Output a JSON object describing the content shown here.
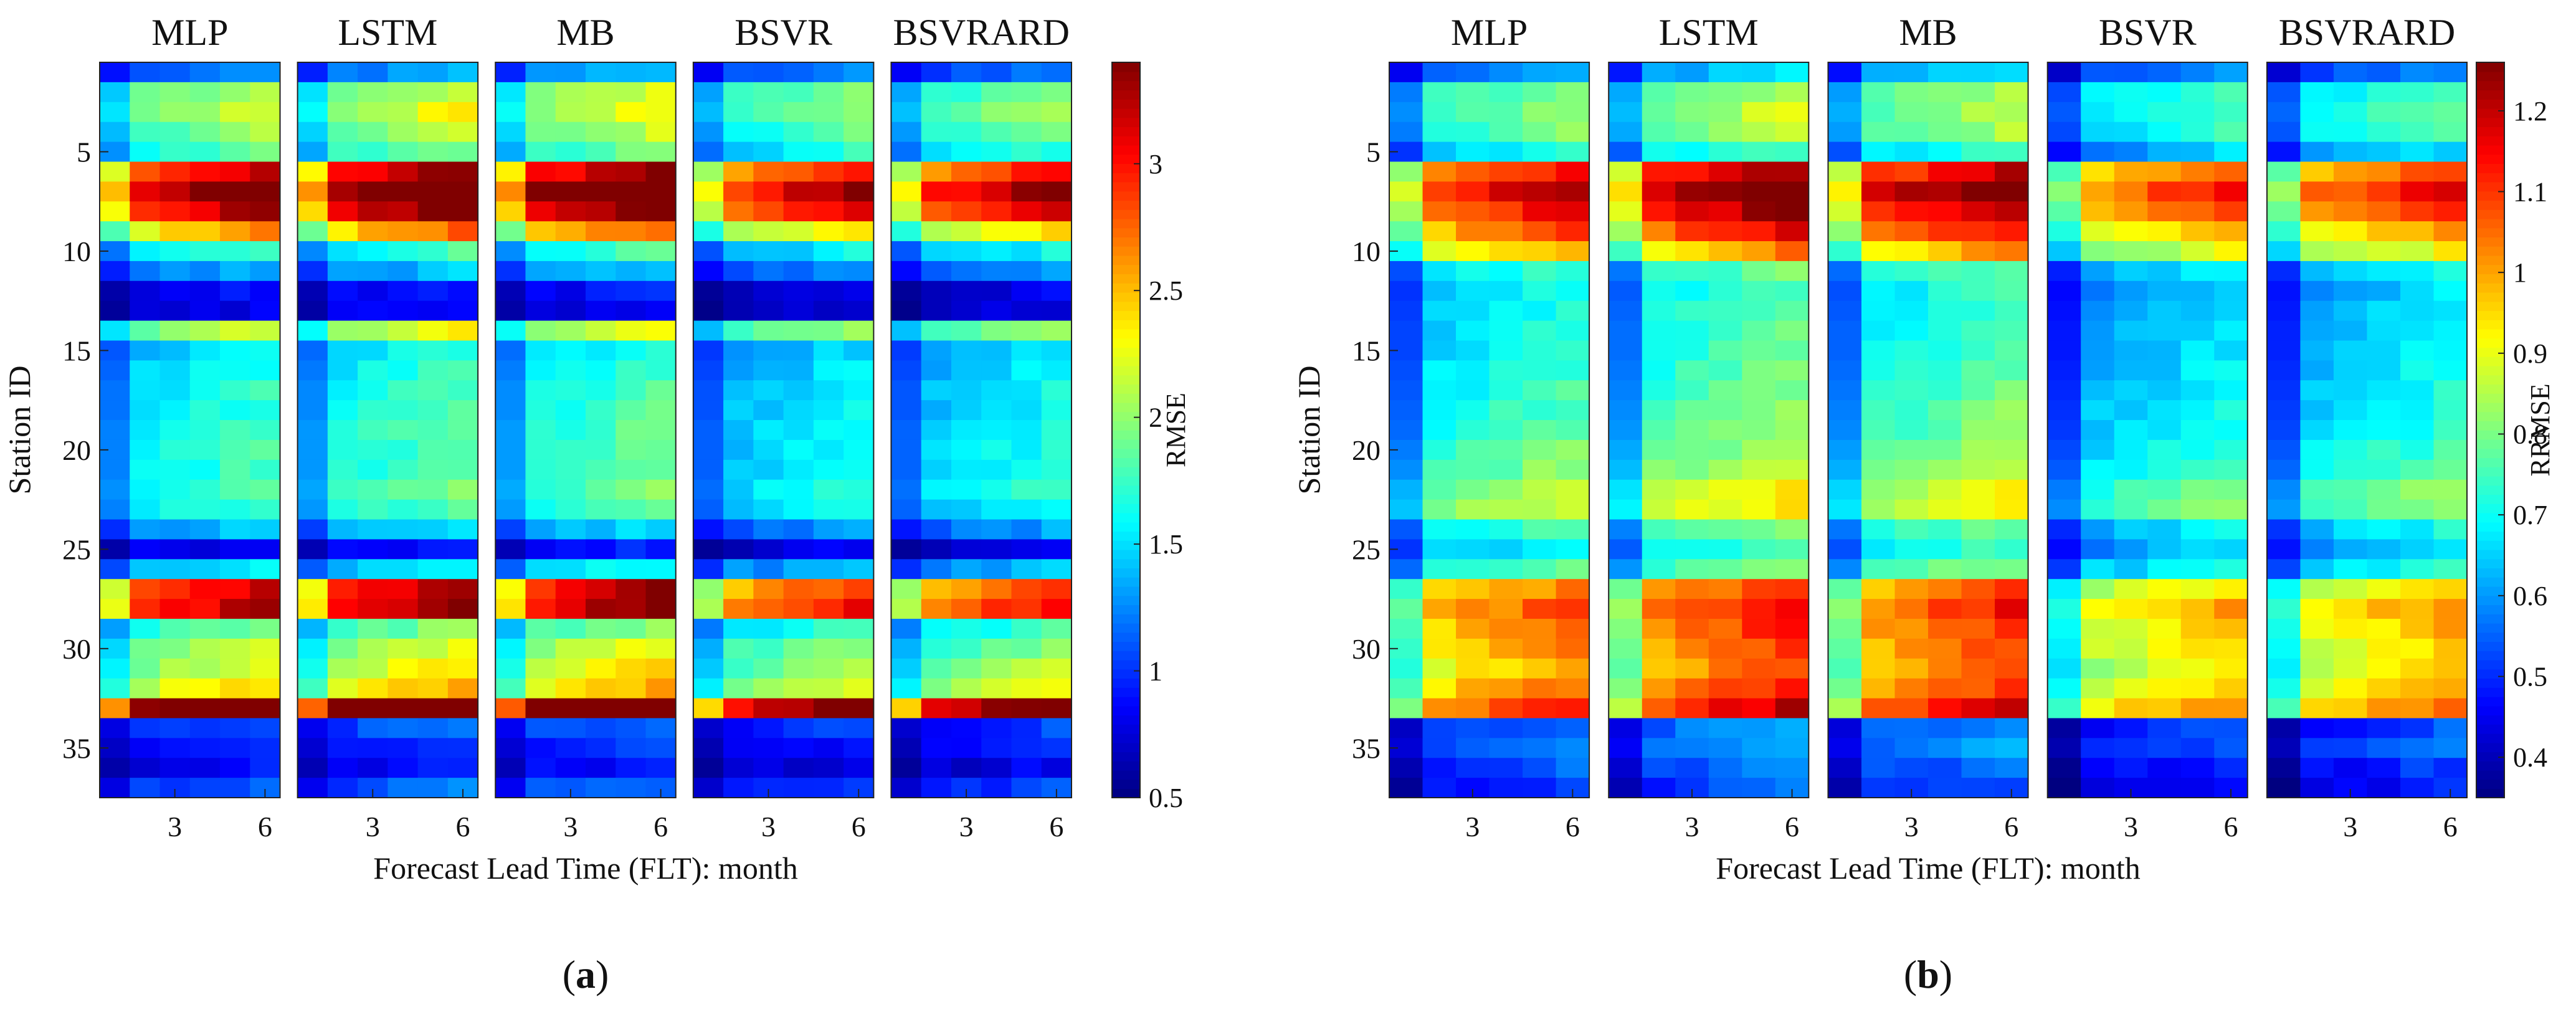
{
  "chart_data": [
    {
      "type": "heatmap",
      "panel_label": "a",
      "colorbar_title": "RMSE",
      "ylabel": "Station ID",
      "xlabel": "Forecast Lead Time (FLT): month",
      "models": [
        "MLP",
        "LSTM",
        "MB",
        "BSVR",
        "BSVRARD"
      ],
      "x_ticks": [
        3,
        6
      ],
      "lead_times": [
        1,
        2,
        3,
        4,
        5,
        6
      ],
      "y_ticks": [
        5,
        10,
        15,
        20,
        25,
        30,
        35
      ],
      "n_stations": 37,
      "colorbar_range": [
        0.5,
        3.4
      ],
      "colorbar_ticks": [
        0.5,
        1,
        1.5,
        2,
        2.5,
        3
      ],
      "station_profile": [
        1.1,
        1.75,
        1.85,
        1.7,
        1.55,
        2.7,
        3.05,
        2.8,
        2.2,
        1.45,
        1.15,
        0.75,
        0.7,
        1.85,
        1.35,
        1.4,
        1.45,
        1.45,
        1.5,
        1.5,
        1.5,
        1.55,
        1.5,
        1.2,
        0.75,
        1.3,
        2.65,
        2.75,
        1.6,
        1.8,
        1.9,
        2.05,
        3.2,
        0.95,
        0.85,
        0.75,
        0.95
      ],
      "model_factor": [
        1.0,
        1.05,
        1.06,
        0.92,
        0.93
      ],
      "lead_slope": 0.04
    },
    {
      "type": "heatmap",
      "panel_label": "b",
      "colorbar_title": "RRMSE",
      "ylabel": "Station ID",
      "xlabel": "Forecast Lead Time (FLT): month",
      "models": [
        "MLP",
        "LSTM",
        "MB",
        "BSVR",
        "BSVRARD"
      ],
      "x_ticks": [
        3,
        6
      ],
      "lead_times": [
        1,
        2,
        3,
        4,
        5,
        6
      ],
      "y_ticks": [
        5,
        10,
        15,
        20,
        25,
        30,
        35
      ],
      "n_stations": 37,
      "colorbar_range": [
        0.35,
        1.26
      ],
      "colorbar_ticks": [
        0.4,
        0.5,
        0.6,
        0.7,
        0.8,
        0.9,
        1,
        1.1,
        1.2
      ],
      "station_profile": [
        0.55,
        0.7,
        0.72,
        0.7,
        0.62,
        1.0,
        1.08,
        1.02,
        0.95,
        0.85,
        0.65,
        0.62,
        0.63,
        0.64,
        0.64,
        0.65,
        0.66,
        0.67,
        0.68,
        0.7,
        0.72,
        0.76,
        0.78,
        0.66,
        0.62,
        0.68,
        0.9,
        0.95,
        0.92,
        0.9,
        0.88,
        0.92,
        0.98,
        0.5,
        0.52,
        0.48,
        0.45
      ],
      "model_factor": [
        1.0,
        1.07,
        1.05,
        0.92,
        0.94
      ],
      "lead_slope": 0.03
    }
  ]
}
